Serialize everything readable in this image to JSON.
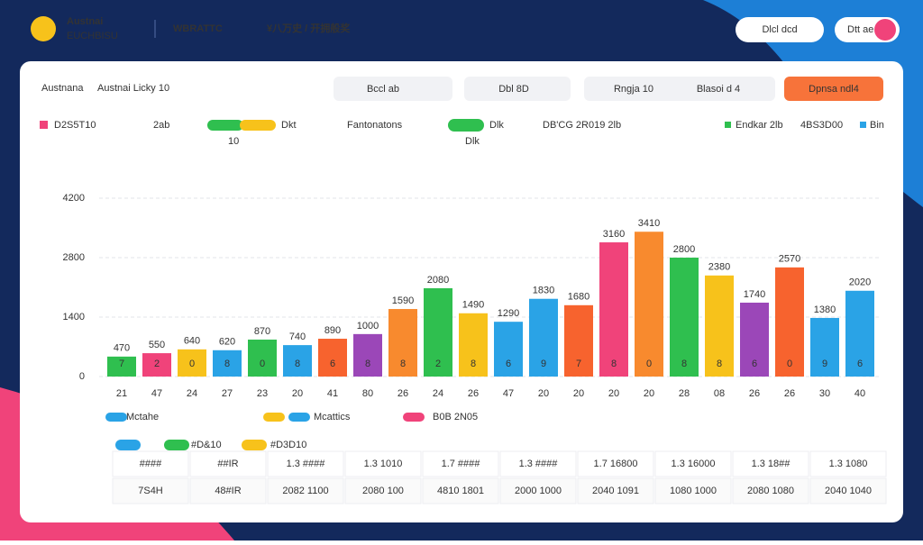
{
  "header": {
    "logo_title": "Austnai",
    "logo_sub": "EUCHBISU",
    "nav": [
      "WBRATTC",
      "¥八万史 / 开拥般奖"
    ],
    "buttons": [
      "Dlcl dcd",
      "Dtt ae"
    ]
  },
  "card": {
    "title_prefix": "Austnana",
    "title": "Austnai Licky 10",
    "filters": [
      "Bccl ab",
      "Dbl 8D",
      "Rngja 10",
      "Blasoi d 4"
    ],
    "action": "Dpnsa ndl4"
  },
  "legend_top": [
    "D2S5T10",
    "2ab",
    "Dkt",
    "Fantonatons",
    "Dlk",
    "DB'CG 2R019 2lb",
    "Endkar 2lb",
    "4BS3D00",
    "Bin",
    "10",
    "Dlk"
  ],
  "legend_bottom": [
    "Mctahe",
    "Mcattics",
    "B0B 2N05",
    "#D&10",
    "#D3D10"
  ],
  "chart_data": {
    "type": "bar",
    "categories": [
      "21",
      "47",
      "24",
      "27",
      "23",
      "20",
      "41",
      "80",
      "26",
      "24",
      "26",
      "47",
      "20",
      "20",
      "20",
      "20",
      "28",
      "08",
      "26",
      "26",
      "30",
      "40"
    ],
    "values": [
      470,
      550,
      640,
      620,
      870,
      740,
      890,
      1000,
      1590,
      2080,
      1490,
      1290,
      1830,
      1680,
      3160,
      3410,
      2800,
      2380,
      1740,
      2570,
      1380,
      2020
    ],
    "inner_labels": [
      "7",
      "2",
      "0",
      "8",
      "0",
      "8",
      "6",
      "8",
      "8",
      "2",
      "8",
      "6",
      "9",
      "7",
      "8",
      "0",
      "8",
      "8",
      "6",
      "0",
      "9",
      "6"
    ],
    "colors": [
      "#2fbf4f",
      "#f0437a",
      "#f7c21b",
      "#2aa3e6",
      "#2fbf4f",
      "#2aa3e6",
      "#f7632e",
      "#9b47b8",
      "#f88a2e",
      "#2fbf4f",
      "#f7c21b",
      "#2aa3e6",
      "#2aa3e6",
      "#f7632e",
      "#f0437a",
      "#f88a2e",
      "#2fbf4f",
      "#f7c21b",
      "#9b47b8",
      "#f7632e",
      "#2aa3e6",
      "#2aa3e6"
    ],
    "ylim": [
      0,
      4200
    ],
    "yticks": [
      0,
      1400,
      2800,
      4200
    ],
    "grid": true
  },
  "table": {
    "rows": [
      [
        "####",
        "##IR",
        "1.3 ####",
        "1.3 1010",
        "1.7 ####",
        "1.3 ####",
        "1.7 16800",
        "1.3 16000",
        "1.3 18##",
        "1.3 1080"
      ],
      [
        "7S4H",
        "48#IR",
        "2082 1100",
        "2080 100",
        "4810 1801",
        "2000 1000",
        "2040 1091",
        "1080 1000",
        "2080 1080",
        "2040 1040"
      ]
    ]
  }
}
